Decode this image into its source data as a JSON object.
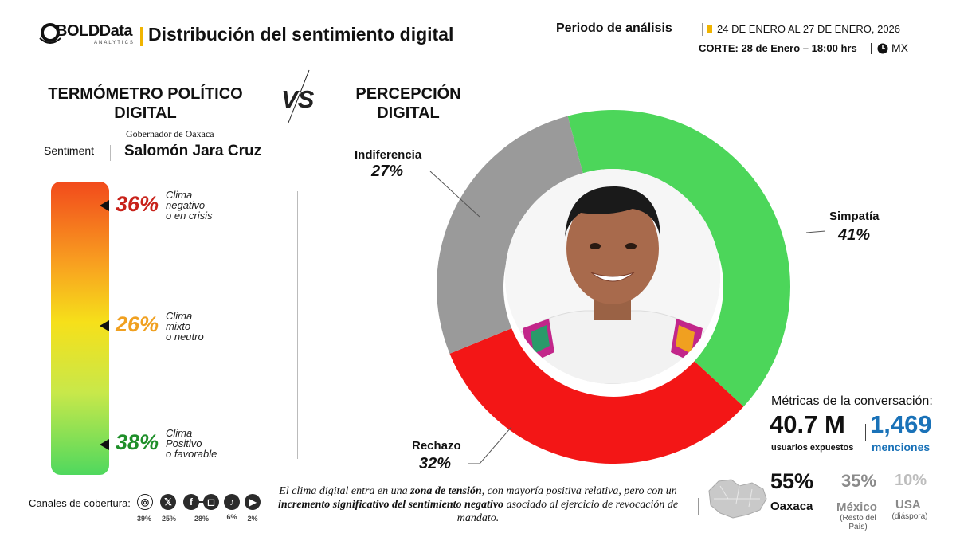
{
  "header": {
    "logo_text": "BOLDData",
    "logo_sub": "ANALYTICS",
    "title": "Distribución del sentimiento digital",
    "period_label": "Periodo de análisis",
    "period_dates": "24 DE ENERO  AL 27 DE ENERO, 2026",
    "corte": "CORTE: 28 de Enero – 18:00 hrs",
    "region": "MX"
  },
  "left": {
    "title_line1": "TERMÓMETRO POLÍTICO",
    "title_line2": "DIGITAL",
    "vs": "VS",
    "sentiment_label": "Sentiment",
    "governor_small": "Gobernador de Oaxaca",
    "governor_name": "Salomón Jara Cruz",
    "thermometer": [
      {
        "pct": "36%",
        "line1": "Clima",
        "line2": "negativo",
        "line3": "o en crisis",
        "color": "#c8221a"
      },
      {
        "pct": "26%",
        "line1": "Clima",
        "line2": "mixto",
        "line3": "o neutro",
        "color": "#f0a020"
      },
      {
        "pct": "38%",
        "line1": "Clima",
        "line2": "Positivo",
        "line3": "o favorable",
        "color": "#1f8f2a"
      }
    ]
  },
  "right": {
    "title_line1": "PERCEPCIÓN",
    "title_line2": "DIGITAL"
  },
  "chart_data": {
    "type": "pie",
    "categories": [
      "Simpatía",
      "Rechazo",
      "Indiferencia"
    ],
    "values": [
      41,
      32,
      27
    ],
    "labels": [
      "41%",
      "32%",
      "27%"
    ],
    "colors": [
      "#4cd65a",
      "#f31616",
      "#9a9a9a"
    ]
  },
  "metrics": {
    "title": "Métricas de la conversación:",
    "users_value": "40.7 M",
    "users_label": "usuarios expuestos",
    "mentions_value": "1,469",
    "mentions_label": "menciones",
    "geo": [
      {
        "pct": "55%",
        "label": "Oaxaca",
        "sub1": "",
        "sub2": "",
        "color": "#111111"
      },
      {
        "pct": "35%",
        "label": "México",
        "sub1": "(Resto del",
        "sub2": "País)",
        "color": "#8a8a8a"
      },
      {
        "pct": "10%",
        "label": "USA",
        "sub1": "(diáspora)",
        "sub2": "",
        "color": "#bdbdbd"
      }
    ]
  },
  "footer": {
    "canales_label": "Canales de cobertura:",
    "channels": [
      {
        "icon": "web-icon",
        "pct": "39%"
      },
      {
        "icon": "x-icon",
        "pct": "25%"
      },
      {
        "icon": "facebook-icon",
        "pct": ""
      },
      {
        "icon": "instagram-icon",
        "pct": "28%"
      },
      {
        "icon": "tiktok-icon",
        "pct": "6%"
      },
      {
        "icon": "youtube-icon",
        "pct": "2%"
      }
    ],
    "note_part1": "El clima digital entra en una ",
    "note_bold1": "zona de tensión",
    "note_part2": ", con mayoría positiva relativa, pero con un ",
    "note_bold2": "incremento significativo del sentimiento negativo",
    "note_part3": " asociado al ejercicio de revocación de mandato."
  }
}
